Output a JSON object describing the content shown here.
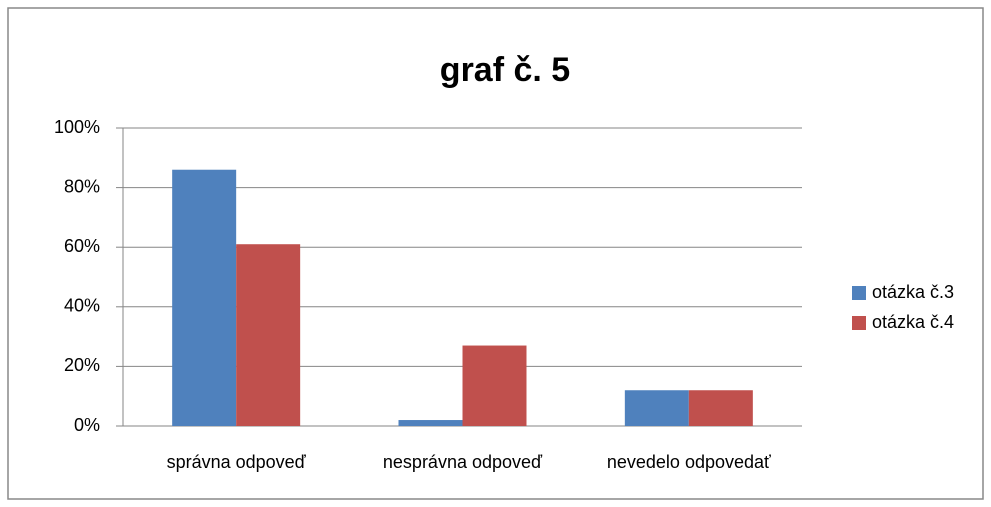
{
  "chart_data": {
    "type": "bar",
    "title": "graf č. 5",
    "categories": [
      "správna odpoveď",
      "nesprávna odpoveď",
      "nevedelo odpovedať"
    ],
    "series": [
      {
        "name": "otázka č.3",
        "color": "#4f81bd",
        "values": [
          86,
          2,
          12
        ]
      },
      {
        "name": "otázka č.4",
        "color": "#c0504d",
        "values": [
          61,
          27,
          12
        ]
      }
    ],
    "ylim": [
      0,
      100
    ],
    "yticks": [
      {
        "value": 0,
        "label": "0%"
      },
      {
        "value": 20,
        "label": "20%"
      },
      {
        "value": 40,
        "label": "40%"
      },
      {
        "value": 60,
        "label": "60%"
      },
      {
        "value": 80,
        "label": "80%"
      },
      {
        "value": 100,
        "label": "100%"
      }
    ],
    "grid": true,
    "legend": "right"
  }
}
